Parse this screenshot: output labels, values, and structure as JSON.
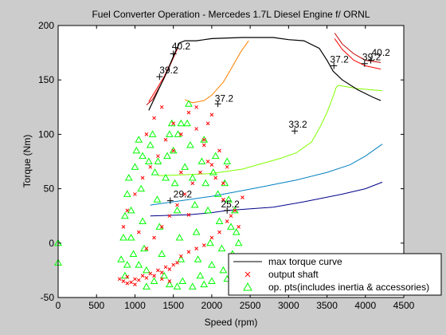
{
  "chart_data": {
    "type": "line",
    "title": "Fuel Converter Operation - Mercedes 1.7L Diesel Engine f/ ORNL",
    "xlabel": "Speed (rpm)",
    "ylabel": "Torque (Nm)",
    "xlim": [
      0,
      4500
    ],
    "ylim": [
      -50,
      200
    ],
    "xticks": [
      0,
      500,
      1000,
      1500,
      2000,
      2500,
      3000,
      3500,
      4000,
      4500
    ],
    "yticks": [
      -50,
      0,
      50,
      100,
      150,
      200
    ],
    "xtick_labels": [
      "0",
      "500",
      "1000",
      "1500",
      "2000",
      "2500",
      "3000",
      "3500",
      "4000",
      "4500"
    ],
    "ytick_labels": [
      "-50",
      "0",
      "50",
      "100",
      "150",
      "200"
    ],
    "grid": false,
    "legend_position": "bottom-right",
    "legend": [
      {
        "label": "max torque curve",
        "marker": "line",
        "color": "#000000"
      },
      {
        "label": "output shaft",
        "marker": "x",
        "color": "#ff0000"
      },
      {
        "label": "op. pts(includes inertia & accessories)",
        "marker": "triangle",
        "color": "#00ff00"
      }
    ],
    "max_torque_curve": {
      "color": "#000000",
      "points": [
        [
          1180,
          122
        ],
        [
          1300,
          140
        ],
        [
          1420,
          158
        ],
        [
          1520,
          175
        ],
        [
          1580,
          184
        ],
        [
          1650,
          186
        ],
        [
          1800,
          186
        ],
        [
          2000,
          188
        ],
        [
          2400,
          189
        ],
        [
          2800,
          189
        ],
        [
          3000,
          187
        ],
        [
          3200,
          186
        ],
        [
          3400,
          179
        ],
        [
          3500,
          168
        ],
        [
          3580,
          158
        ],
        [
          3700,
          150
        ],
        [
          3900,
          141
        ],
        [
          4100,
          134
        ],
        [
          4200,
          131
        ]
      ]
    },
    "efficiency_contours": [
      {
        "color": "#00008b",
        "points": [
          [
            1200,
            25
          ],
          [
            1700,
            26
          ],
          [
            2000,
            28
          ],
          [
            2200,
            30
          ],
          [
            2800,
            33
          ],
          [
            3200,
            38
          ],
          [
            3700,
            45
          ],
          [
            4000,
            50
          ],
          [
            4220,
            56
          ]
        ]
      },
      {
        "color": "#0080c0",
        "points": [
          [
            1200,
            35
          ],
          [
            1600,
            39
          ],
          [
            2000,
            43
          ],
          [
            2300,
            47
          ],
          [
            2600,
            51
          ],
          [
            3100,
            58
          ],
          [
            3500,
            65
          ],
          [
            3800,
            72
          ],
          [
            4000,
            80
          ],
          [
            4220,
            91
          ]
        ]
      },
      {
        "color": "#80ff00",
        "points": [
          [
            1300,
            62
          ],
          [
            1700,
            63
          ],
          [
            2000,
            64
          ],
          [
            2400,
            68
          ],
          [
            2900,
            78
          ],
          [
            3100,
            83
          ],
          [
            3300,
            93
          ],
          [
            3420,
            108
          ],
          [
            3500,
            120
          ],
          [
            3580,
            135
          ],
          [
            3620,
            143
          ],
          [
            3650,
            145
          ],
          [
            3900,
            142
          ],
          [
            4220,
            140
          ]
        ]
      },
      {
        "color": "#ff8000",
        "points": [
          [
            1650,
            132
          ],
          [
            1750,
            129
          ],
          [
            1900,
            131
          ],
          [
            2000,
            136
          ],
          [
            2150,
            148
          ],
          [
            2250,
            160
          ],
          [
            2380,
            176
          ],
          [
            2480,
            186
          ]
        ]
      },
      {
        "color": "#ff0000",
        "points": [
          [
            1180,
            130
          ],
          [
            1250,
            138
          ],
          [
            1380,
            153
          ],
          [
            1480,
            168
          ],
          [
            1560,
            180
          ]
        ]
      },
      {
        "color": "#ff0000",
        "points": [
          [
            3600,
            188
          ],
          [
            3700,
            178
          ],
          [
            3850,
            168
          ],
          [
            4000,
            163
          ],
          [
            4200,
            160
          ]
        ]
      },
      {
        "color": "#c00000",
        "points": [
          [
            1150,
            127
          ],
          [
            1230,
            132
          ],
          [
            1370,
            150
          ],
          [
            1480,
            167
          ],
          [
            1560,
            180
          ]
        ]
      },
      {
        "color": "#c00000",
        "points": [
          [
            3600,
            193
          ],
          [
            3700,
            183
          ],
          [
            3850,
            174
          ],
          [
            4000,
            168
          ],
          [
            4200,
            166
          ]
        ]
      }
    ],
    "contour_labels": [
      {
        "text": "40.2",
        "x": 1480,
        "y": 178
      },
      {
        "text": "39.2",
        "x": 1320,
        "y": 156
      },
      {
        "text": "37.2",
        "x": 2040,
        "y": 130
      },
      {
        "text": "33.2",
        "x": 3000,
        "y": 106
      },
      {
        "text": "29.2",
        "x": 1500,
        "y": 42
      },
      {
        "text": "25.2",
        "x": 2120,
        "y": 33
      },
      {
        "text": "37.2",
        "x": 3540,
        "y": 166
      },
      {
        "text": "39.2",
        "x": 3960,
        "y": 168
      },
      {
        "text": "40.2",
        "x": 4080,
        "y": 172
      }
    ],
    "plus_markers": [
      [
        1500,
        174
      ],
      [
        1320,
        153
      ],
      [
        2080,
        128
      ],
      [
        3080,
        103
      ],
      [
        1460,
        39
      ],
      [
        2200,
        30
      ],
      [
        3590,
        163
      ],
      [
        3990,
        165
      ],
      [
        4070,
        168
      ]
    ],
    "output_shaft_points": [
      [
        800,
        -33
      ],
      [
        850,
        -35
      ],
      [
        900,
        -31
      ],
      [
        950,
        -36
      ],
      [
        1000,
        -33
      ],
      [
        1050,
        -34
      ],
      [
        1100,
        -30
      ],
      [
        1150,
        -32
      ],
      [
        1200,
        -28
      ],
      [
        1250,
        -30
      ],
      [
        1300,
        -25
      ],
      [
        1350,
        -27
      ],
      [
        1400,
        -22
      ],
      [
        1450,
        -24
      ],
      [
        1500,
        -20
      ],
      [
        1550,
        -18
      ],
      [
        1600,
        -12
      ],
      [
        1700,
        -8
      ],
      [
        1800,
        -5
      ],
      [
        1900,
        -2
      ],
      [
        2000,
        5
      ],
      [
        2100,
        10
      ],
      [
        2200,
        20
      ],
      [
        2300,
        30
      ],
      [
        2400,
        42
      ],
      [
        2150,
        55
      ],
      [
        2000,
        72
      ],
      [
        1900,
        90
      ],
      [
        1800,
        105
      ],
      [
        1700,
        120
      ],
      [
        1600,
        100
      ],
      [
        1500,
        110
      ],
      [
        1400,
        95
      ],
      [
        1300,
        80
      ],
      [
        1200,
        70
      ],
      [
        1100,
        60
      ],
      [
        1000,
        45
      ],
      [
        900,
        30
      ],
      [
        850,
        15
      ],
      [
        1050,
        10
      ],
      [
        1150,
        -5
      ],
      [
        1250,
        5
      ],
      [
        1350,
        15
      ],
      [
        1450,
        25
      ],
      [
        1550,
        35
      ],
      [
        1650,
        45
      ],
      [
        1750,
        55
      ],
      [
        1850,
        65
      ],
      [
        1950,
        75
      ],
      [
        2050,
        60
      ],
      [
        2150,
        40
      ],
      [
        2250,
        25
      ],
      [
        2350,
        15
      ],
      [
        1700,
        26
      ],
      [
        1900,
        95
      ],
      [
        1950,
        110
      ],
      [
        2000,
        118
      ],
      [
        1800,
        125
      ],
      [
        1350,
        125
      ],
      [
        1250,
        115
      ],
      [
        1150,
        100
      ],
      [
        1450,
        -35
      ],
      [
        1350,
        -33
      ],
      [
        1000,
        -38
      ],
      [
        900,
        -37
      ],
      [
        2100,
        85
      ],
      [
        2200,
        70
      ],
      [
        1600,
        65
      ],
      [
        1500,
        85
      ]
    ],
    "op_points": [
      [
        0,
        0
      ],
      [
        0,
        -18
      ],
      [
        820,
        -15
      ],
      [
        850,
        5
      ],
      [
        870,
        25
      ],
      [
        900,
        45
      ],
      [
        920,
        60
      ],
      [
        950,
        30
      ],
      [
        980,
        -10
      ],
      [
        1000,
        70
      ],
      [
        1020,
        85
      ],
      [
        1050,
        95
      ],
      [
        1080,
        50
      ],
      [
        1100,
        20
      ],
      [
        1120,
        -5
      ],
      [
        1150,
        -25
      ],
      [
        1180,
        75
      ],
      [
        1200,
        90
      ],
      [
        1230,
        100
      ],
      [
        1260,
        65
      ],
      [
        1290,
        40
      ],
      [
        1320,
        15
      ],
      [
        1350,
        -10
      ],
      [
        1380,
        -30
      ],
      [
        1400,
        60
      ],
      [
        1420,
        80
      ],
      [
        1450,
        100
      ],
      [
        1480,
        110
      ],
      [
        1500,
        85
      ],
      [
        1520,
        55
      ],
      [
        1550,
        30
      ],
      [
        1580,
        5
      ],
      [
        1600,
        -15
      ],
      [
        1620,
        -35
      ],
      [
        1650,
        70
      ],
      [
        1680,
        110
      ],
      [
        1700,
        128
      ],
      [
        1720,
        90
      ],
      [
        1750,
        60
      ],
      [
        1780,
        35
      ],
      [
        1800,
        10
      ],
      [
        1820,
        -15
      ],
      [
        1850,
        -30
      ],
      [
        1870,
        75
      ],
      [
        1900,
        95
      ],
      [
        1920,
        55
      ],
      [
        1950,
        30
      ],
      [
        1980,
        0
      ],
      [
        2000,
        -20
      ],
      [
        2020,
        65
      ],
      [
        2050,
        80
      ],
      [
        2080,
        45
      ],
      [
        2100,
        20
      ],
      [
        2130,
        -5
      ],
      [
        2150,
        -25
      ],
      [
        2170,
        55
      ],
      [
        2200,
        75
      ],
      [
        2220,
        40
      ],
      [
        2250,
        15
      ],
      [
        2270,
        -10
      ],
      [
        2300,
        30
      ],
      [
        2320,
        10
      ],
      [
        2350,
        0
      ],
      [
        2380,
        -15
      ],
      [
        1560,
        100
      ],
      [
        1600,
        110
      ],
      [
        1300,
        75
      ],
      [
        1100,
        80
      ],
      [
        950,
        5
      ],
      [
        1050,
        -20
      ],
      [
        1250,
        -35
      ],
      [
        1450,
        -38
      ],
      [
        1750,
        -40
      ],
      [
        2000,
        -35
      ],
      [
        2200,
        -33
      ],
      [
        2400,
        -25
      ],
      [
        2300,
        -35
      ],
      [
        1900,
        -38
      ],
      [
        1550,
        -40
      ],
      [
        1150,
        -40
      ],
      [
        870,
        -30
      ],
      [
        900,
        -20
      ]
    ]
  }
}
